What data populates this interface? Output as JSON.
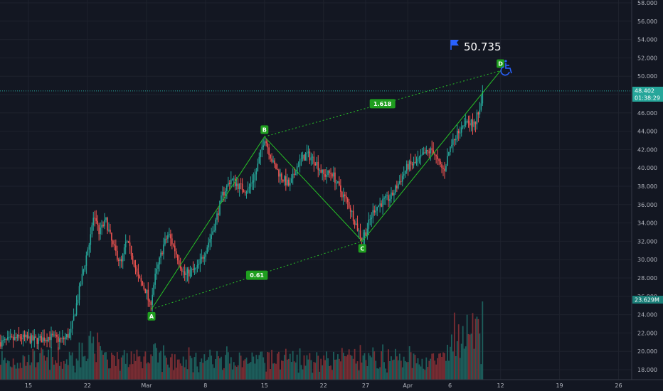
{
  "chart_data": {
    "type": "candlestick",
    "title": "",
    "xlabel": "",
    "ylabel": "",
    "ylim": [
      17.0,
      58.8
    ],
    "y_ticks": [
      "18.000",
      "20.000",
      "22.000",
      "24.000",
      "26.000",
      "28.000",
      "30.000",
      "32.000",
      "34.000",
      "36.000",
      "38.000",
      "40.000",
      "42.000",
      "44.000",
      "46.000",
      "48.000",
      "50.000",
      "52.000",
      "54.000",
      "56.000",
      "58.000"
    ],
    "x_ticks": [
      {
        "label": "15",
        "day": 0
      },
      {
        "label": "22",
        "day": 7
      },
      {
        "label": "Mar",
        "day": 14
      },
      {
        "label": "8",
        "day": 21
      },
      {
        "label": "15",
        "day": 28
      },
      {
        "label": "22",
        "day": 35
      },
      {
        "label": "27",
        "day": 40
      },
      {
        "label": "Apr",
        "day": 45
      },
      {
        "label": "6",
        "day": 50
      },
      {
        "label": "12",
        "day": 56
      },
      {
        "label": "19",
        "day": 63
      },
      {
        "label": "26",
        "day": 70
      }
    ],
    "price_anchors": [
      [
        -3,
        21.0
      ],
      [
        -1,
        21.5
      ],
      [
        1,
        21.2
      ],
      [
        2.5,
        21.6
      ],
      [
        4,
        21.2
      ],
      [
        5,
        22.0
      ],
      [
        6,
        26.5
      ],
      [
        7,
        31.0
      ],
      [
        7.7,
        34.5
      ],
      [
        8.4,
        33.0
      ],
      [
        9.2,
        34.2
      ],
      [
        10,
        31.5
      ],
      [
        11,
        29.5
      ],
      [
        11.6,
        32.0
      ],
      [
        12.3,
        30.5
      ],
      [
        13,
        28.0
      ],
      [
        14,
        26.5
      ],
      [
        14.4,
        24.8
      ],
      [
        15,
        28.0
      ],
      [
        16,
        31.5
      ],
      [
        16.6,
        32.8
      ],
      [
        17.4,
        31.0
      ],
      [
        18,
        29.5
      ],
      [
        18.5,
        28.3
      ],
      [
        20,
        29.0
      ],
      [
        21,
        31.0
      ],
      [
        22,
        33.5
      ],
      [
        23,
        37.0
      ],
      [
        24,
        38.8
      ],
      [
        25,
        38.0
      ],
      [
        26,
        37.5
      ],
      [
        27,
        39.5
      ],
      [
        28,
        43.4
      ],
      [
        29,
        40.5
      ],
      [
        30,
        39.0
      ],
      [
        31,
        38.0
      ],
      [
        32,
        40.5
      ],
      [
        33,
        41.5
      ],
      [
        34,
        40.8
      ],
      [
        35,
        39.2
      ],
      [
        36,
        39.5
      ],
      [
        37,
        37.5
      ],
      [
        38,
        36.0
      ],
      [
        38.8,
        34.0
      ],
      [
        39.5,
        32.3
      ],
      [
        40,
        33.0
      ],
      [
        41,
        35.5
      ],
      [
        42,
        36.3
      ],
      [
        43,
        36.8
      ],
      [
        44,
        38.5
      ],
      [
        45,
        40.2
      ],
      [
        46,
        40.5
      ],
      [
        47,
        41.5
      ],
      [
        48,
        42.0
      ],
      [
        48.6,
        40.5
      ],
      [
        49.3,
        39.7
      ],
      [
        50,
        42.2
      ],
      [
        51,
        44.0
      ],
      [
        52,
        45.5
      ],
      [
        52.8,
        44.5
      ],
      [
        53.5,
        46.5
      ],
      [
        54,
        48.4
      ]
    ],
    "volume_unit": "M",
    "current_price": "48.402",
    "countdown": "01:38:29",
    "current_volume": "23.629M",
    "pattern": {
      "points": [
        {
          "name": "A",
          "day": 14.6,
          "price": 24.6
        },
        {
          "name": "B",
          "day": 28.0,
          "price": 43.4
        },
        {
          "name": "C",
          "day": 39.6,
          "price": 32.0
        },
        {
          "name": "D",
          "day": 56.0,
          "price": 50.6
        }
      ],
      "ratio_ac": "0.61",
      "ratio_bd": "1.618",
      "target_price": "50.735"
    },
    "colors": {
      "up": "#26a69a",
      "down": "#ef5350",
      "pattern": "#27c227",
      "badge": "#1f9e1f",
      "grid": "#1e222d",
      "price_line": "#26a69a",
      "flag": "#2962ff",
      "wheelchair": "#2962ff"
    },
    "icons": [
      "flag-icon",
      "wheelchair-icon"
    ]
  }
}
